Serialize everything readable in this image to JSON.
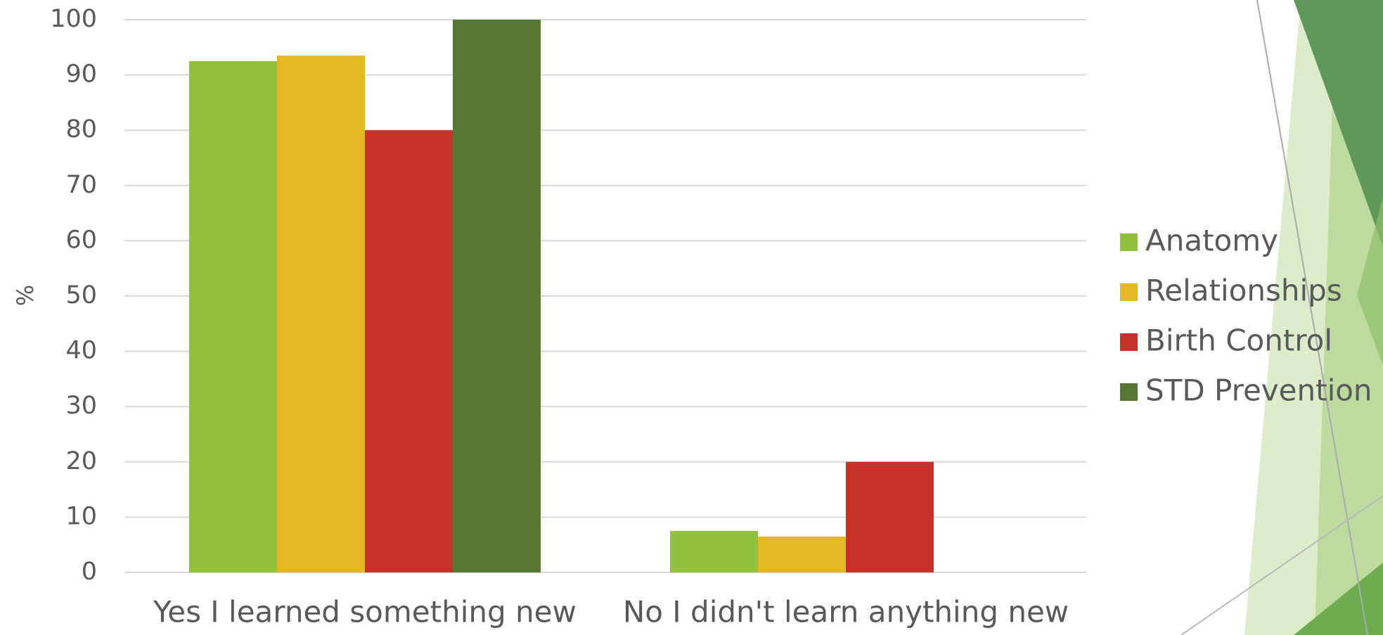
{
  "chart_data": {
    "type": "bar",
    "y_label": "%",
    "categories": [
      "Yes I learned something new",
      "No I didn't learn anything new"
    ],
    "series": [
      {
        "name": "Anatomy",
        "color": "#92c13d",
        "values": [
          92.5,
          7.5
        ]
      },
      {
        "name": "Relationships",
        "color": "#e4b825",
        "values": [
          93.5,
          6.5
        ]
      },
      {
        "name": "Birth Control",
        "color": "#c63128",
        "values": [
          80,
          20
        ]
      },
      {
        "name": "STD Prevention",
        "color": "#577835",
        "values": [
          100,
          0
        ]
      }
    ],
    "ylim": [
      0,
      100
    ],
    "yticks": [
      0,
      10,
      20,
      30,
      40,
      50,
      60,
      70,
      80,
      90,
      100
    ],
    "grid": true,
    "legend": "right"
  }
}
